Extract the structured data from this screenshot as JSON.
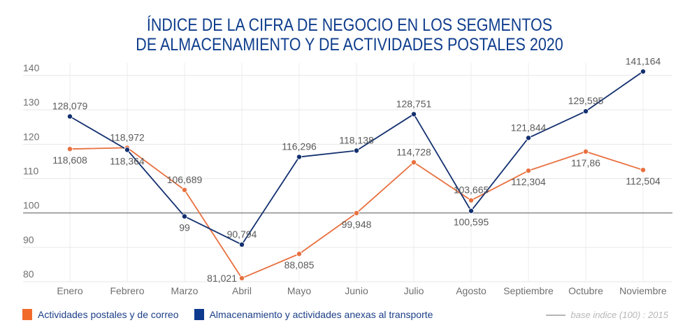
{
  "title": {
    "line1": "ÍNDICE DE LA CIFRA DE NEGOCIO EN LOS SEGMENTOS",
    "line2": "DE ALMACENAMIENTO Y DE ACTIVIDADES POSTALES 2020"
  },
  "legend": {
    "items": [
      {
        "label": "Actividades postales y de correo",
        "color": "#f26a2a"
      },
      {
        "label": "Almacenamiento y actividades anexas al transporte",
        "color": "#0d3a8e"
      }
    ],
    "base_note": "base indice  (100) : 2015"
  },
  "chart_data": {
    "type": "line",
    "title": "ÍNDICE DE LA CIFRA DE NEGOCIO EN LOS SEGMENTOS DE ALMACENAMIENTO Y DE ACTIVIDADES POSTALES 2020",
    "xlabel": "",
    "ylabel": "",
    "categories": [
      "Enero",
      "Febrero",
      "Marzo",
      "Abril",
      "Mayo",
      "Junio",
      "Julio",
      "Agosto",
      "Septiembre",
      "Octubre",
      "Noviembre"
    ],
    "ylim": [
      80,
      140
    ],
    "yticks": [
      80,
      90,
      100,
      110,
      120,
      130,
      140
    ],
    "grid": true,
    "reference_line": {
      "value": 100,
      "label": "base indice (100) : 2015"
    },
    "legend_position": "bottom-left",
    "series": [
      {
        "name": "Actividades postales y de correo",
        "color": "#e8703f",
        "values": [
          118.608,
          118.972,
          106.689,
          81.021,
          88.085,
          99.948,
          114.728,
          103.665,
          112.304,
          117.86,
          112.504
        ],
        "labels": [
          "118,608",
          "118,972",
          "106,689",
          "81,021",
          "88,085",
          "99,948",
          "114,728",
          "103,665",
          "112,304",
          "117,86",
          "112,504"
        ],
        "label_pos": [
          "below",
          "above",
          "above",
          "left",
          "below",
          "below",
          "above",
          "above",
          "below",
          "below",
          "below"
        ]
      },
      {
        "name": "Almacenamiento y actividades anexas al transporte",
        "color": "#13306f",
        "values": [
          128.079,
          118.364,
          99,
          90.794,
          116.296,
          118.138,
          128.751,
          100.595,
          121.844,
          129.595,
          141.164
        ],
        "labels": [
          "128,079",
          "118,364",
          "99",
          "90,794",
          "116,296",
          "118,138",
          "128,751",
          "100,595",
          "121,844",
          "129,595",
          "141,164"
        ],
        "label_pos": [
          "above",
          "below",
          "below",
          "above",
          "above",
          "above",
          "above",
          "below",
          "above",
          "above",
          "above"
        ]
      }
    ]
  }
}
